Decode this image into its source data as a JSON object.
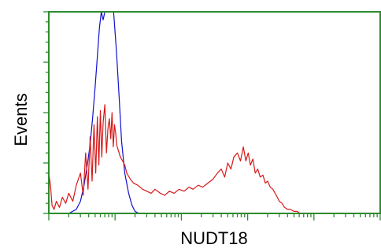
{
  "colors": {
    "frame": "#2e8b2e",
    "tick": "#2e8b2e",
    "control_series": "#1010d0",
    "sample_series": "#d81818",
    "text": "#000000"
  },
  "chart_data": {
    "type": "line",
    "title": "",
    "xlabel": "NUDT18",
    "ylabel": "Events",
    "x_scale": "log",
    "xlim": [
      1,
      100000
    ],
    "ylim": [
      0,
      100
    ],
    "grid": false,
    "legend": "none",
    "x_major_ticks": [
      1,
      10,
      100,
      1000,
      10000,
      100000
    ],
    "y_major_ticks": [
      0,
      25,
      50,
      75,
      100
    ],
    "series": [
      {
        "color_key": "control_series",
        "x": [
          1.0,
          2.0,
          2.6,
          3.0,
          3.4,
          3.8,
          4.2,
          4.6,
          5.0,
          5.4,
          5.8,
          6.2,
          6.6,
          7.0,
          7.4,
          7.8,
          8.2,
          8.6,
          9.0,
          9.5,
          10.5,
          11.5,
          12.5,
          14.0,
          16.0,
          18.0,
          20.0,
          23.0
        ],
        "y": [
          0,
          0,
          2,
          6,
          14,
          24,
          34,
          48,
          63,
          78,
          92,
          100,
          96,
          100,
          100,
          100,
          100,
          100,
          100,
          100,
          80,
          58,
          36,
          20,
          10,
          4,
          1,
          0
        ]
      },
      {
        "color_key": "sample_series",
        "x": [
          1.0,
          1.06,
          1.12,
          1.2,
          1.3,
          1.45,
          1.6,
          1.8,
          2.0,
          2.3,
          2.6,
          3.0,
          3.3,
          3.6,
          3.9,
          4.2,
          4.5,
          4.8,
          5.1,
          5.4,
          5.7,
          6.0,
          6.3,
          6.6,
          7.0,
          7.4,
          7.8,
          8.2,
          8.6,
          9.0,
          9.4,
          9.8,
          10.2,
          10.6,
          11.0,
          12.0,
          13.0,
          14.0,
          15.0,
          17.0,
          19.0,
          22.0,
          26.0,
          30.0,
          35.0,
          40.0,
          48.0,
          56.0,
          66.0,
          78.0,
          92.0,
          110.0,
          130.0,
          150.0,
          180.0,
          210.0,
          250.0,
          300.0,
          350.0,
          400.0,
          450.0,
          500.0,
          560.0,
          620.0,
          700.0,
          780.0,
          860.0,
          940.0,
          1020.0,
          1100.0,
          1200.0,
          1300.0,
          1420.0,
          1550.0,
          1700.0,
          1850.0,
          2000.0,
          2200.0,
          2400.0,
          2600.0,
          2800.0,
          3000.0,
          3300.0,
          3600.0,
          4000.0,
          4400.0,
          5000.0,
          5600.0,
          6200.0,
          7000.0,
          8000.0
        ],
        "y": [
          20,
          14,
          4,
          2,
          6,
          3,
          8,
          5,
          10,
          6,
          14,
          20,
          9,
          30,
          12,
          38,
          16,
          44,
          20,
          48,
          24,
          51,
          28,
          45,
          54,
          30,
          42,
          47,
          37,
          50,
          33,
          44,
          40,
          34,
          32,
          28,
          26,
          24,
          20,
          17,
          15,
          14,
          12,
          11,
          10,
          12,
          10,
          9,
          11,
          10,
          12,
          11,
          13,
          12,
          14,
          13,
          15,
          17,
          20,
          22,
          18,
          25,
          22,
          28,
          30,
          26,
          33,
          26,
          30,
          24,
          27,
          20,
          22,
          18,
          19,
          15,
          16,
          13,
          12,
          10,
          8,
          6,
          5,
          3,
          2,
          2,
          1,
          1,
          0,
          0,
          0
        ]
      }
    ]
  }
}
